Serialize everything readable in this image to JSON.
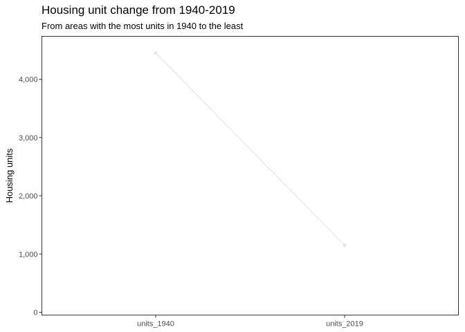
{
  "chart_data": {
    "type": "line",
    "title": "Housing unit change from 1940-2019",
    "subtitle": "From areas with the most units in 1940 to the least",
    "xlabel": "",
    "ylabel": "Housing units",
    "categories": [
      "units_1940",
      "units_2019"
    ],
    "series": [
      {
        "values": [
          4450,
          1150
        ]
      }
    ],
    "ylim": [
      0,
      4600
    ],
    "yticks": [
      0,
      1000,
      2000,
      3000,
      4000
    ],
    "ytick_labels": [
      "0",
      "1,000",
      "2,000",
      "3,000",
      "4,000"
    ],
    "grid": false,
    "legend": "none",
    "colors": {
      "line": "#e6e6e6",
      "point": "#e6e6e6",
      "panel_border": "#333333",
      "tick": "#333333"
    }
  }
}
